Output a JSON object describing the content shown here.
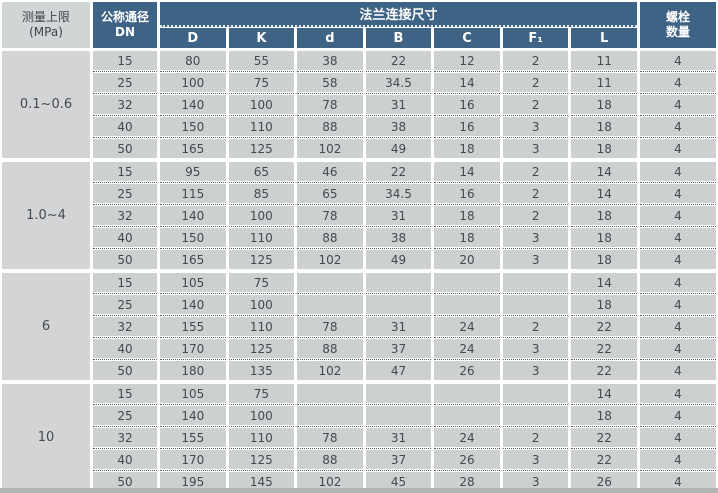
{
  "colors": {
    "header_blue": "#3f6384",
    "cell_gray": "#cdd0d1",
    "limit_gray": "#d2d4d5",
    "header_text": "#ffffff",
    "cell_text": "#46494c"
  },
  "table": {
    "header": {
      "limit_line1": "测量上限",
      "limit_line2": "(MPa)",
      "dn_line1": "公称通径",
      "dn_line2": "DN",
      "flange_span": "法兰连接尺寸",
      "dims": [
        "D",
        "K",
        "d",
        "B",
        "C",
        "F₁",
        "L"
      ],
      "bolts_line1": "螺栓",
      "bolts_line2": "数量"
    },
    "groups": [
      {
        "limit": "0.1~0.6",
        "rows": [
          {
            "cells": [
              "15",
              "80",
              "55",
              "38",
              "22",
              "12",
              "2",
              "11",
              "4"
            ]
          },
          {
            "cells": [
              "25",
              "100",
              "75",
              "58",
              "34.5",
              "14",
              "2",
              "11",
              "4"
            ]
          },
          {
            "cells": [
              "32",
              "140",
              "100",
              "78",
              "31",
              "16",
              "2",
              "18",
              "4"
            ]
          },
          {
            "cells": [
              "40",
              "150",
              "110",
              "88",
              "38",
              "16",
              "3",
              "18",
              "4"
            ]
          },
          {
            "cells": [
              "50",
              "165",
              "125",
              "102",
              "49",
              "18",
              "3",
              "18",
              "4"
            ]
          }
        ]
      },
      {
        "limit": "1.0~4",
        "rows": [
          {
            "cells": [
              "15",
              "95",
              "65",
              "46",
              "22",
              "14",
              "2",
              "14",
              "4"
            ]
          },
          {
            "cells": [
              "25",
              "115",
              "85",
              "65",
              "34.5",
              "16",
              "2",
              "14",
              "4"
            ]
          },
          {
            "cells": [
              "32",
              "140",
              "100",
              "78",
              "31",
              "18",
              "2",
              "18",
              "4"
            ]
          },
          {
            "cells": [
              "40",
              "150",
              "110",
              "88",
              "38",
              "18",
              "3",
              "18",
              "4"
            ]
          },
          {
            "cells": [
              "50",
              "165",
              "125",
              "102",
              "49",
              "20",
              "3",
              "18",
              "4"
            ]
          }
        ]
      },
      {
        "limit": "6",
        "rows": [
          {
            "cells": [
              "15",
              "105",
              "75",
              "",
              "",
              "",
              "",
              "14",
              "4"
            ]
          },
          {
            "cells": [
              "25",
              "140",
              "100",
              "",
              "",
              "",
              "",
              "18",
              "4"
            ]
          },
          {
            "cells": [
              "32",
              "155",
              "110",
              "78",
              "31",
              "24",
              "2",
              "22",
              "4"
            ]
          },
          {
            "cells": [
              "40",
              "170",
              "125",
              "88",
              "37",
              "24",
              "3",
              "22",
              "4"
            ]
          },
          {
            "cells": [
              "50",
              "180",
              "135",
              "102",
              "47",
              "26",
              "3",
              "22",
              "4"
            ]
          }
        ]
      },
      {
        "limit": "10",
        "rows": [
          {
            "cells": [
              "15",
              "105",
              "75",
              "",
              "",
              "",
              "",
              "14",
              "4"
            ]
          },
          {
            "cells": [
              "25",
              "140",
              "100",
              "",
              "",
              "",
              "",
              "18",
              "4"
            ]
          },
          {
            "cells": [
              "32",
              "155",
              "110",
              "78",
              "31",
              "24",
              "2",
              "22",
              "4"
            ]
          },
          {
            "cells": [
              "40",
              "170",
              "125",
              "88",
              "37",
              "26",
              "3",
              "22",
              "4"
            ]
          },
          {
            "cells": [
              "50",
              "195",
              "145",
              "102",
              "45",
              "28",
              "3",
              "26",
              "4"
            ]
          }
        ]
      }
    ]
  }
}
